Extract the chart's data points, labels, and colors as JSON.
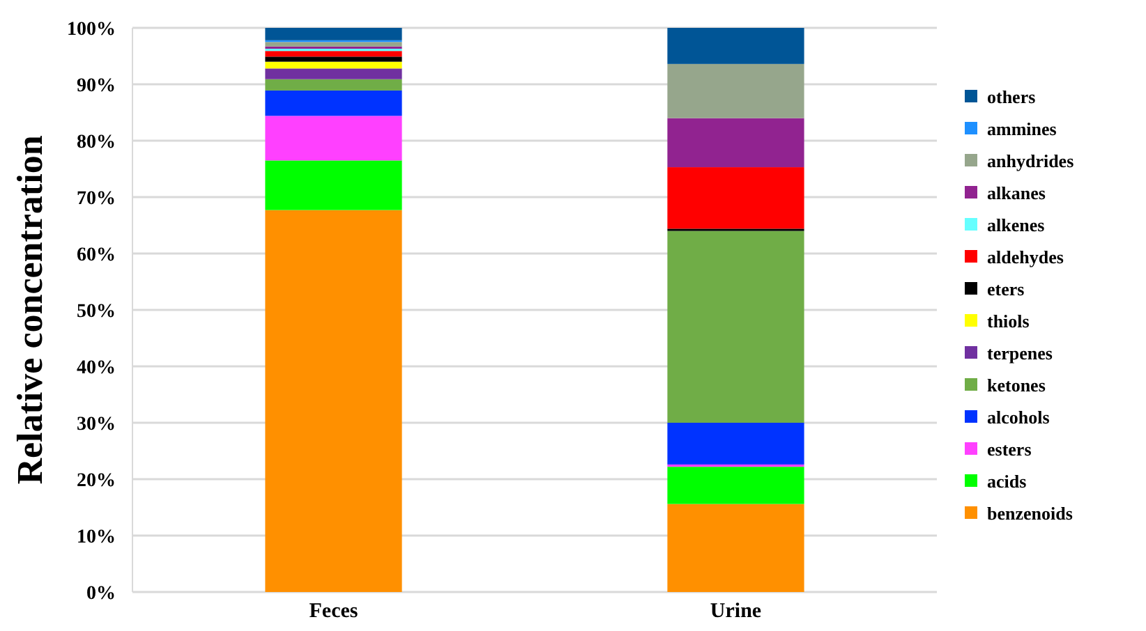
{
  "chart_data": {
    "type": "bar",
    "stacked": true,
    "ylabel": "Relative concentration",
    "categories": [
      "Feces",
      "Urine"
    ],
    "ylim": [
      0,
      100
    ],
    "yticks": [
      {
        "value": 0,
        "label": "0%"
      },
      {
        "value": 10,
        "label": "10%"
      },
      {
        "value": 20,
        "label": "20%"
      },
      {
        "value": 30,
        "label": "30%"
      },
      {
        "value": 40,
        "label": "40%"
      },
      {
        "value": 50,
        "label": "50%"
      },
      {
        "value": 60,
        "label": "60%"
      },
      {
        "value": 70,
        "label": "70%"
      },
      {
        "value": 80,
        "label": "80%"
      },
      {
        "value": 90,
        "label": "90%"
      },
      {
        "value": 100,
        "label": "100%"
      }
    ],
    "grid": "y",
    "legend": "right",
    "series": [
      {
        "name": "benzenoids",
        "color": "#ff9000",
        "values": [
          67.7,
          15.6
        ]
      },
      {
        "name": "acids",
        "color": "#00ff00",
        "values": [
          8.8,
          6.6
        ]
      },
      {
        "name": "esters",
        "color": "#ff40ff",
        "values": [
          7.9,
          0.4
        ]
      },
      {
        "name": "alcohols",
        "color": "#0033ff",
        "values": [
          4.5,
          7.4
        ]
      },
      {
        "name": "ketones",
        "color": "#70ad47",
        "values": [
          2.0,
          34.0
        ]
      },
      {
        "name": "terpenes",
        "color": "#7030a0",
        "values": [
          1.9,
          0
        ]
      },
      {
        "name": "thiols",
        "color": "#ffff00",
        "values": [
          1.2,
          0
        ]
      },
      {
        "name": "eters",
        "color": "#000000",
        "values": [
          0.9,
          0.4
        ]
      },
      {
        "name": "aldehydes",
        "color": "#ff0000",
        "values": [
          1.0,
          10.9
        ]
      },
      {
        "name": "alkenes",
        "color": "#66ffff",
        "values": [
          0.4,
          0
        ]
      },
      {
        "name": "alkanes",
        "color": "#912390",
        "values": [
          0.4,
          8.7
        ]
      },
      {
        "name": "anhydrides",
        "color": "#96a68c",
        "values": [
          0.8,
          9.6
        ]
      },
      {
        "name": "ammines",
        "color": "#1e90ff",
        "values": [
          0.3,
          0
        ]
      },
      {
        "name": "others",
        "color": "#005596",
        "values": [
          2.2,
          6.4
        ]
      }
    ]
  }
}
